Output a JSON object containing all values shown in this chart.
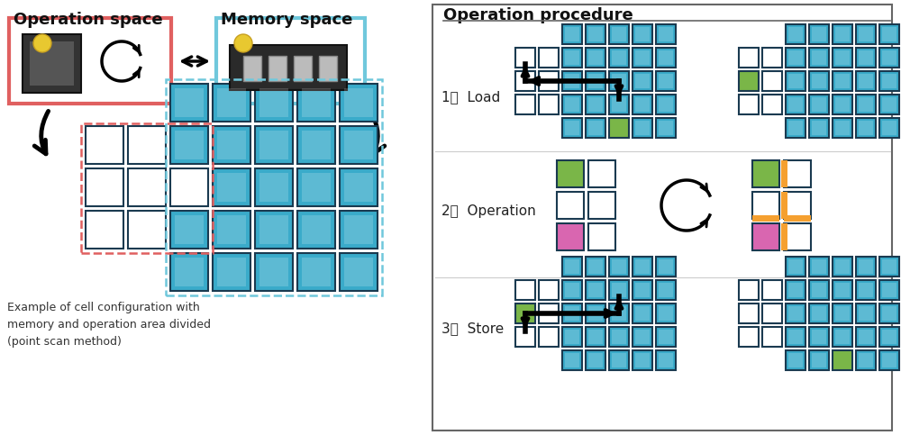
{
  "teal": "#3aabca",
  "white_cell_border": "#1a3a50",
  "pink": "#d966b0",
  "green": "#7ab648",
  "orange": "#f5a030",
  "red_border": "#e06060",
  "blue_border": "#70c8dc",
  "label_color": "#222222",
  "title_color": "#111111",
  "fig_bg": "#ffffff",
  "left_title1": "Operation space",
  "left_title2": "Memory space",
  "bottom_text": "Example of cell configuration with\nmemory and operation area divided\n(point scan method)",
  "right_title": "Operation procedure",
  "step_labels": [
    "1．  Load",
    "2．  Operation",
    "3．  Store"
  ],
  "panel_border": "#666666",
  "arrow_color": "#111111"
}
